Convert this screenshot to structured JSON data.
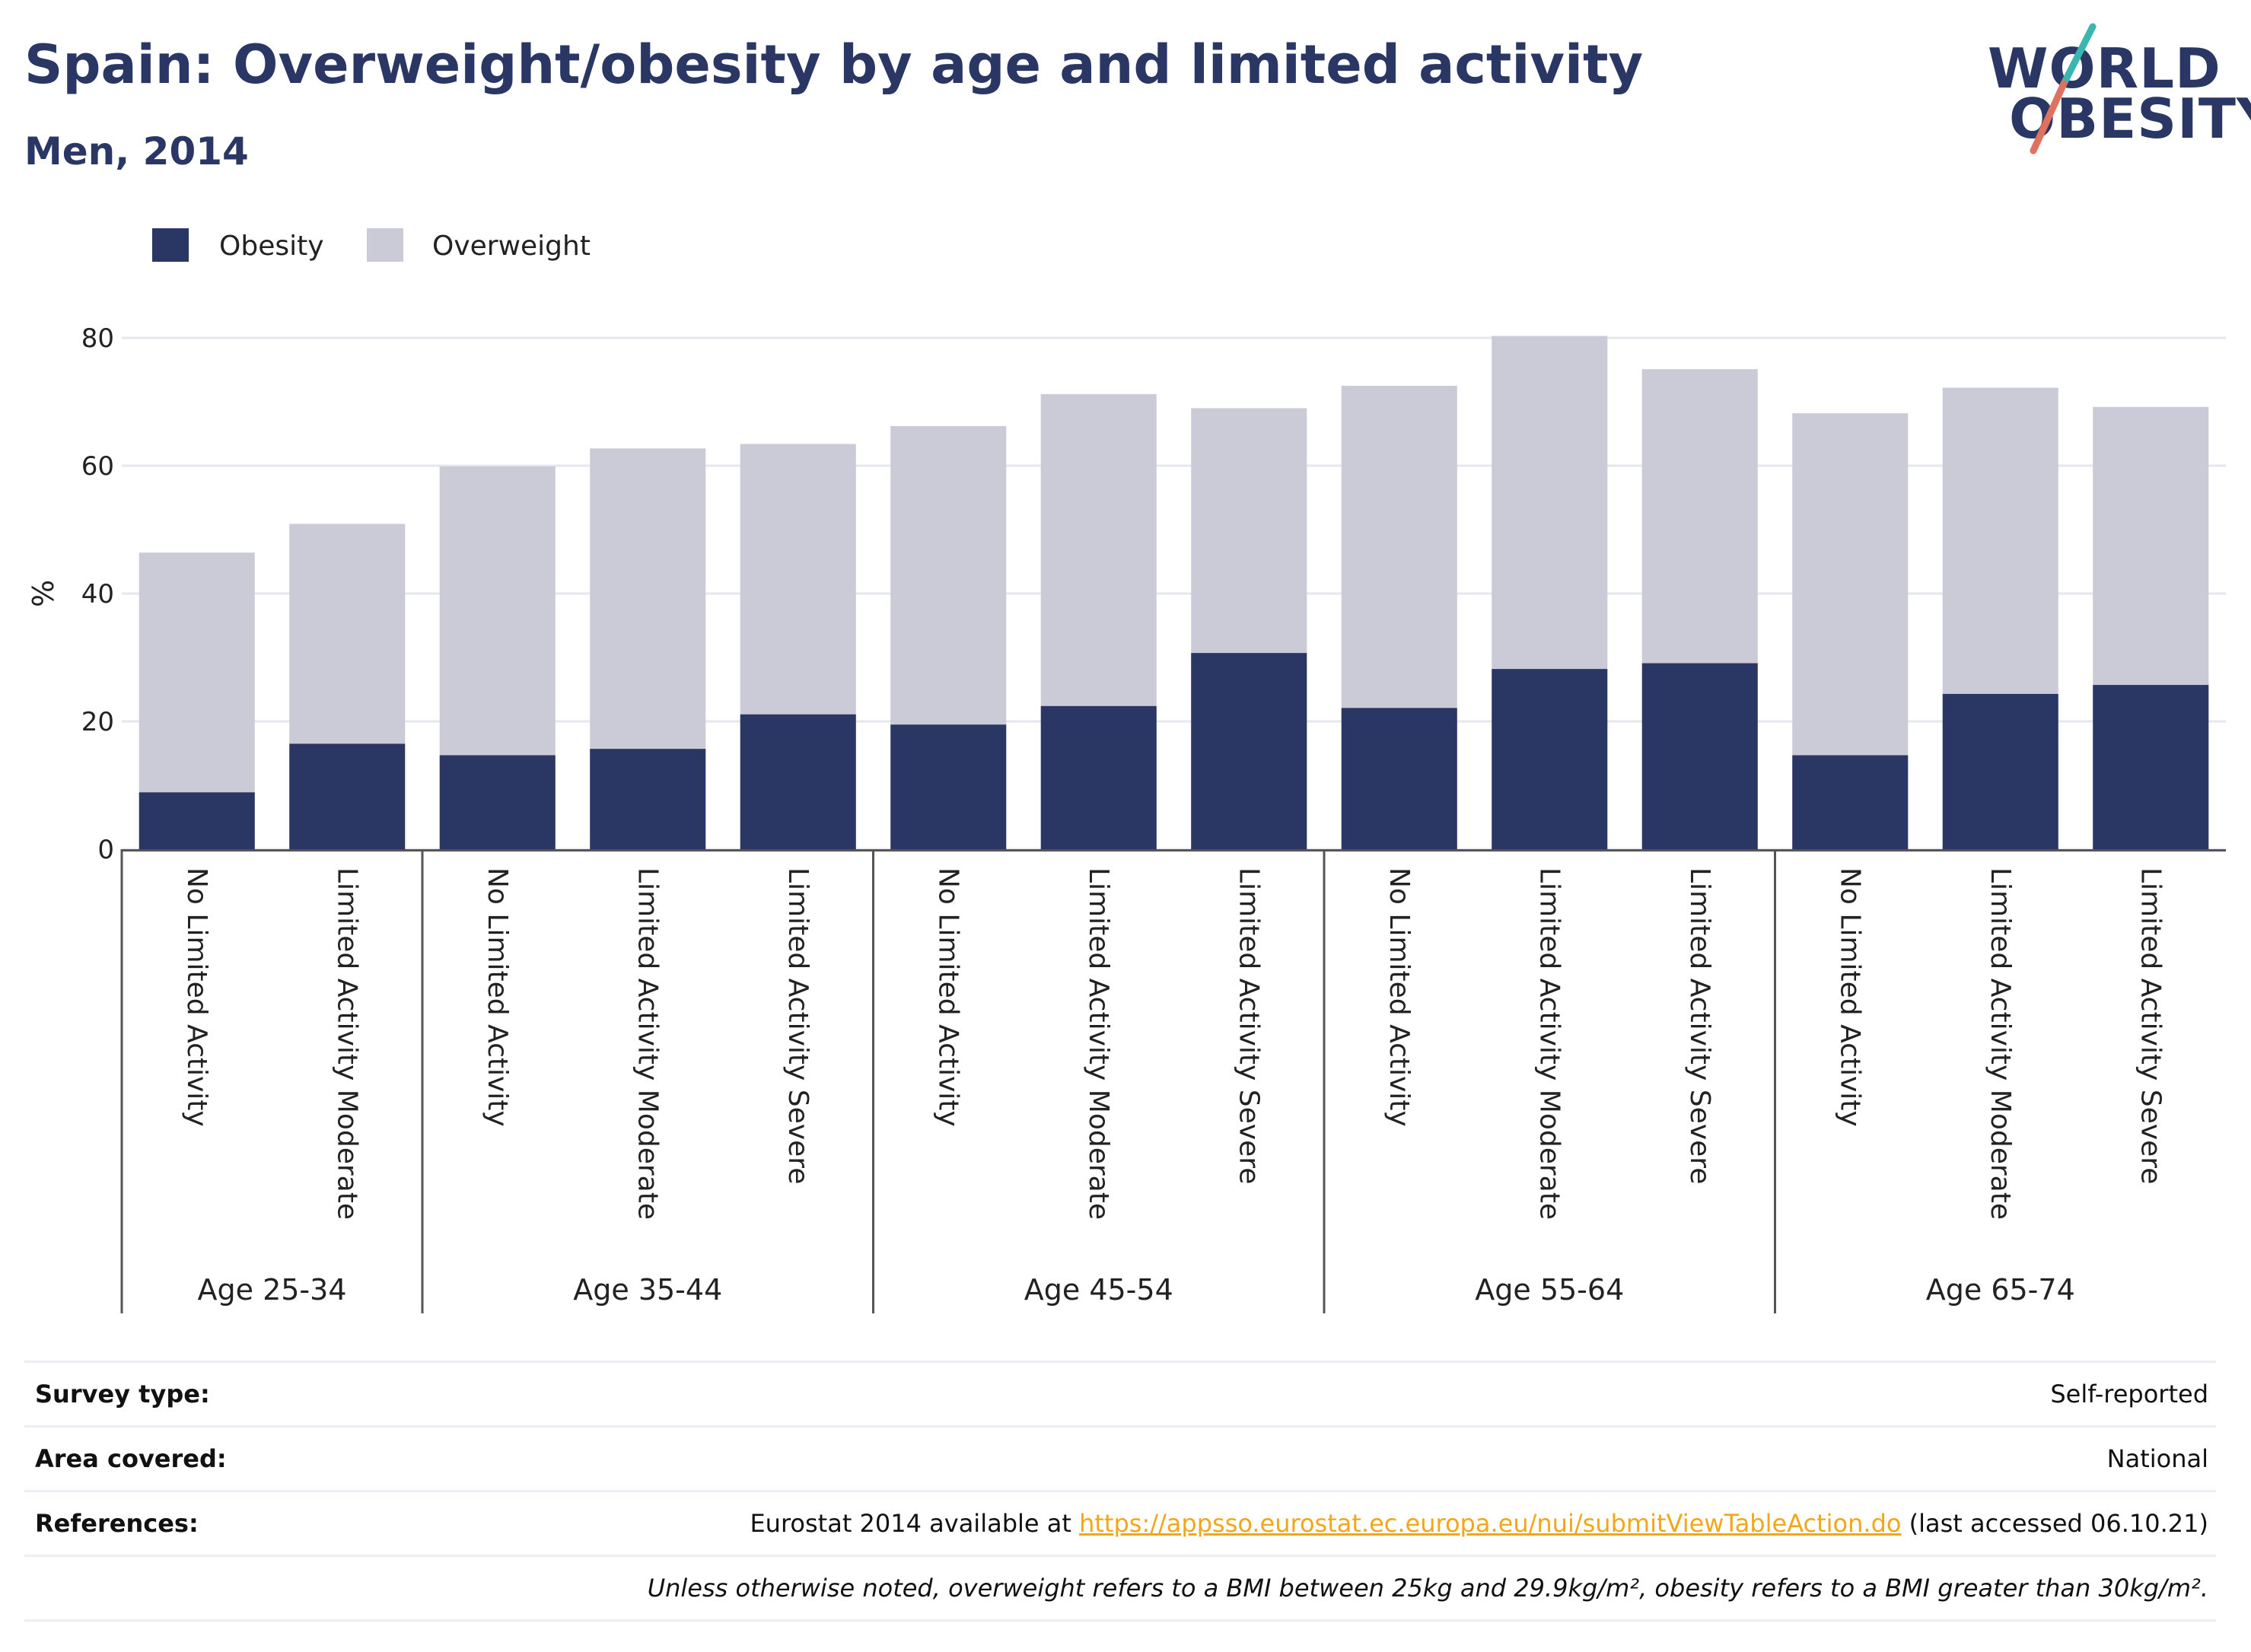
{
  "header": {
    "title": "Spain: Overweight/obesity by age and limited activity",
    "subtitle": "Men, 2014"
  },
  "logo": {
    "line1": "WORLD",
    "line2": "OBESITY"
  },
  "colors": {
    "obesity": "#2a3663",
    "overweight": "#cacbd7",
    "accent_teal": "#3ab5b0",
    "accent_coral": "#e0715e",
    "link": "#f2a71b"
  },
  "chart_data": {
    "type": "bar",
    "stacked": true,
    "ylabel": "%",
    "ylim": [
      0,
      80
    ],
    "yticks": [
      0,
      20,
      40,
      60,
      80
    ],
    "grid": true,
    "legend_position": "top-left",
    "groups": [
      {
        "label": "Age 25-34",
        "categories": [
          "No Limited Activity",
          "Limited Activity Moderate"
        ]
      },
      {
        "label": "Age 35-44",
        "categories": [
          "No Limited Activity",
          "Limited Activity Moderate",
          "Limited Activity Severe"
        ]
      },
      {
        "label": "Age 45-54",
        "categories": [
          "No Limited Activity",
          "Limited Activity Moderate",
          "Limited Activity Severe"
        ]
      },
      {
        "label": "Age 55-64",
        "categories": [
          "No Limited Activity",
          "Limited Activity Moderate",
          "Limited Activity Severe"
        ]
      },
      {
        "label": "Age 65-74",
        "categories": [
          "No Limited Activity",
          "Limited Activity Moderate",
          "Limited Activity Severe"
        ]
      }
    ],
    "series": [
      {
        "name": "Obesity",
        "values": [
          8.9,
          16.5,
          14.7,
          15.7,
          21.1,
          19.5,
          22.4,
          30.7,
          22.1,
          28.2,
          29.1,
          14.7,
          24.3,
          25.7
        ]
      },
      {
        "name": "Overweight",
        "values": [
          37.5,
          34.4,
          45.2,
          47.0,
          42.3,
          46.7,
          48.8,
          38.3,
          50.4,
          52.1,
          46.0,
          53.5,
          47.9,
          43.5
        ]
      }
    ]
  },
  "info": {
    "survey_label": "Survey type:",
    "survey_value": "Self-reported",
    "area_label": "Area covered:",
    "area_value": "National",
    "references_label": "References:",
    "references_prefix": "Eurostat 2014 available at ",
    "references_link": "https://appsso.eurostat.ec.europa.eu/nui/submitViewTableAction.do",
    "references_suffix": " (last accessed 06.10.21)",
    "note": "Unless otherwise noted, overweight refers to a BMI between 25kg and 29.9kg/m², obesity refers to a BMI greater than 30kg/m²."
  }
}
